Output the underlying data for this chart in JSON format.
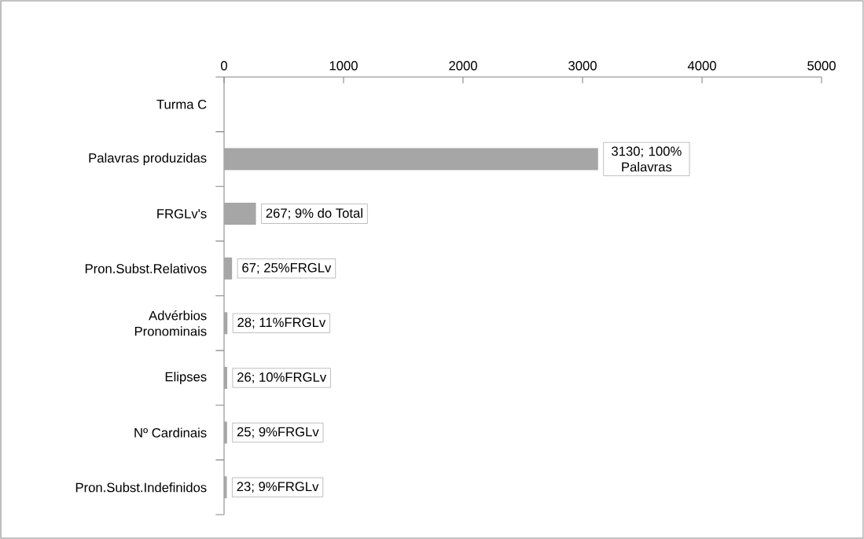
{
  "chart_data": {
    "type": "bar",
    "orientation": "horizontal",
    "categories": [
      "Turma C",
      "Palavras produzidas",
      "FRGLv's",
      "Pron.Subst.Relativos",
      "Advérbios Pronominais",
      "Elipses",
      "Nº Cardinais",
      "Pron.Subst.Indefinidos"
    ],
    "values": [
      null,
      3130,
      267,
      67,
      28,
      26,
      25,
      23
    ],
    "value_labels": [
      null,
      "3130; 100% Palavras",
      "267; 9% do Total",
      "67; 25%FRGLv",
      "28; 11%FRGLv",
      "26; 10%FRGLv",
      "25; 9%FRGLv",
      "23; 9%FRGLv"
    ],
    "color": "#a6a6a6",
    "xlim": [
      0,
      5000
    ],
    "xticks": [
      0,
      1000,
      2000,
      3000,
      4000,
      5000
    ]
  }
}
